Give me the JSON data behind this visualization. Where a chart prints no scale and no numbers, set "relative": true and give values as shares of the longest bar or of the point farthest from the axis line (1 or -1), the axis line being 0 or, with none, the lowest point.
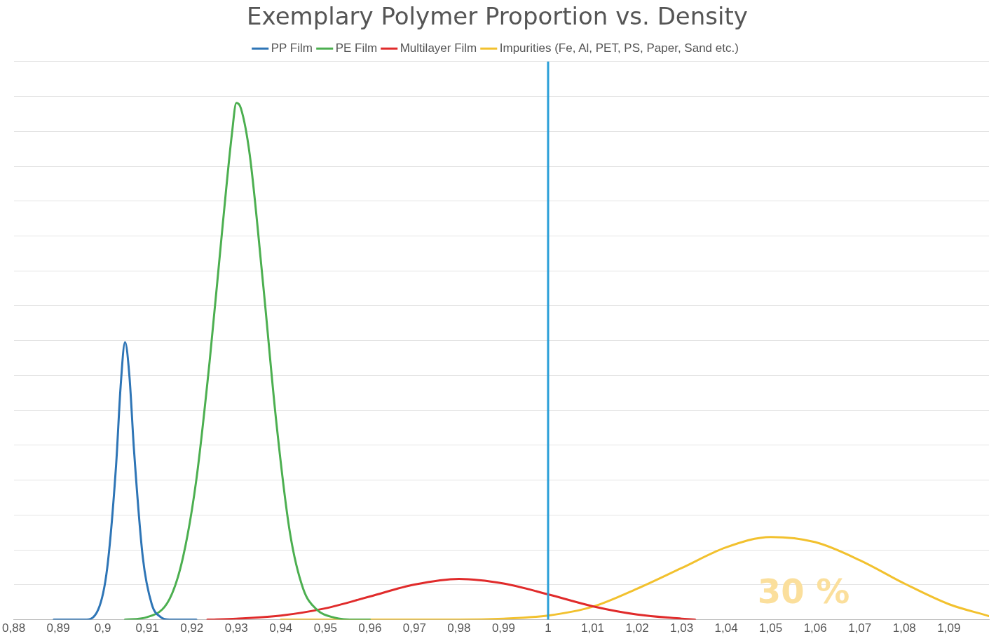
{
  "chart_data": {
    "type": "line",
    "title": "Exemplary Polymer Proportion vs. Density",
    "relative": true,
    "xlim": [
      0.88,
      1.099
    ],
    "xticks": [
      {
        "value": 0.88,
        "label": "0,88"
      },
      {
        "value": 0.89,
        "label": "0,89"
      },
      {
        "value": 0.9,
        "label": "0,9"
      },
      {
        "value": 0.91,
        "label": "0,91"
      },
      {
        "value": 0.92,
        "label": "0,92"
      },
      {
        "value": 0.93,
        "label": "0,93"
      },
      {
        "value": 0.94,
        "label": "0,94"
      },
      {
        "value": 0.95,
        "label": "0,95"
      },
      {
        "value": 0.96,
        "label": "0,96"
      },
      {
        "value": 0.97,
        "label": "0,97"
      },
      {
        "value": 0.98,
        "label": "0,98"
      },
      {
        "value": 0.99,
        "label": "0,99"
      },
      1,
      {
        "value": 1.01,
        "label": "1,01"
      },
      {
        "value": 1.02,
        "label": "1,02"
      },
      {
        "value": 1.03,
        "label": "1,03"
      },
      {
        "value": 1.04,
        "label": "1,04"
      },
      {
        "value": 1.05,
        "label": "1,05"
      },
      {
        "value": 1.06,
        "label": "1,06"
      },
      {
        "value": 1.07,
        "label": "1,07"
      },
      {
        "value": 1.08,
        "label": "1,08"
      },
      {
        "value": 1.09,
        "label": "1,09"
      }
    ],
    "series": [
      {
        "name": "PP Film",
        "color": "#2e75b6",
        "x": [
          0.889,
          0.896,
          0.899,
          0.901,
          0.903,
          0.904,
          0.905,
          0.906,
          0.907,
          0.909,
          0.911,
          0.913,
          0.915,
          0.921
        ],
        "values": [
          0,
          0,
          0.02,
          0.1,
          0.3,
          0.45,
          0.537,
          0.47,
          0.33,
          0.12,
          0.03,
          0.005,
          0,
          0
        ]
      },
      {
        "name": "PE Film",
        "color": "#4caf50",
        "x": [
          0.905,
          0.91,
          0.915,
          0.918,
          0.921,
          0.924,
          0.927,
          0.929,
          0.93,
          0.931,
          0.933,
          0.936,
          0.939,
          0.942,
          0.945,
          0.948,
          0.952,
          0.957,
          0.96
        ],
        "values": [
          0,
          0.005,
          0.04,
          0.12,
          0.27,
          0.5,
          0.77,
          0.94,
          1,
          0.99,
          0.9,
          0.65,
          0.38,
          0.17,
          0.06,
          0.02,
          0.004,
          0,
          0
        ]
      },
      {
        "name": "Multilayer Film",
        "color": "#e02b2b",
        "x": [
          0.9235,
          0.93,
          0.94,
          0.95,
          0.96,
          0.97,
          0.98,
          0.99,
          1,
          1.01,
          1.02,
          1.03,
          1.033
        ],
        "values": [
          0,
          0.002,
          0.008,
          0.022,
          0.045,
          0.068,
          0.079,
          0.07,
          0.049,
          0.026,
          0.01,
          0.002,
          0
        ]
      },
      {
        "name": "Impurities (Fe, Al, PET, PS, Paper, Sand etc.)",
        "color": "#f2c12e",
        "x": [
          0.94,
          0.98,
          0.99,
          1,
          1.01,
          1.02,
          1.03,
          1.04,
          1.05,
          1.06,
          1.07,
          1.08,
          1.09,
          1.099
        ],
        "values": [
          0,
          0,
          0.002,
          0.008,
          0.025,
          0.06,
          0.1,
          0.14,
          0.16,
          0.15,
          0.115,
          0.07,
          0.03,
          0.007
        ]
      }
    ],
    "ref_lines": [
      {
        "axis": "x",
        "value": 1,
        "color": "#2a9fd8"
      }
    ],
    "annotations": [
      "30 %"
    ],
    "grid": "y",
    "legend": "top",
    "marker": "none",
    "line_style": "solid"
  }
}
